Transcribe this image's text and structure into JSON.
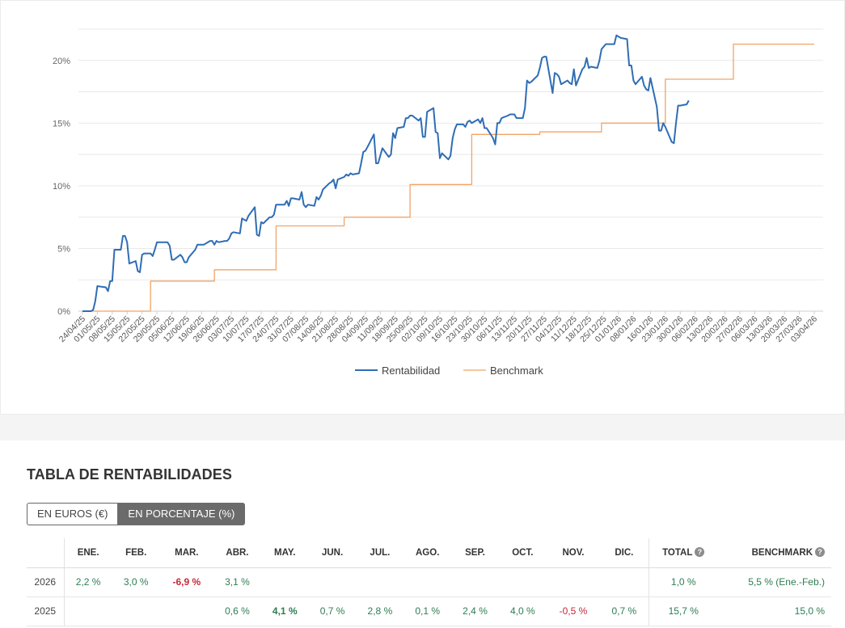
{
  "chart_data": {
    "type": "line",
    "y_ticks": [
      "0%",
      "5%",
      "10%",
      "15%",
      "20%"
    ],
    "ylim": [
      0,
      22.5
    ],
    "date_labels": [
      "24/04/25",
      "01/05/25",
      "08/05/25",
      "15/05/25",
      "22/05/25",
      "29/05/25",
      "05/06/25",
      "12/06/25",
      "19/06/25",
      "26/06/25",
      "03/07/25",
      "10/07/25",
      "17/07/25",
      "24/07/25",
      "31/07/25",
      "07/08/25",
      "14/08/25",
      "21/08/25",
      "28/08/25",
      "04/09/25",
      "11/09/25",
      "18/09/25",
      "25/09/25",
      "02/10/25",
      "09/10/25",
      "16/10/25",
      "23/10/25",
      "30/10/25",
      "06/11/25",
      "13/11/25",
      "20/11/25",
      "27/11/25",
      "04/12/25",
      "11/12/25",
      "18/12/25",
      "25/12/25",
      "01/01/26",
      "08/01/26",
      "16/01/26",
      "23/01/26",
      "30/01/26",
      "06/02/26",
      "13/02/26",
      "20/02/26",
      "27/02/26",
      "06/03/26",
      "13/03/26",
      "20/03/26",
      "27/03/26",
      "03/04/26"
    ],
    "legend_position": "bottom",
    "series": [
      {
        "name": "Rentabilidad",
        "color": "#2f6db5",
        "points": [
          [
            "24/04/25",
            0.0
          ],
          [
            "28/04/25",
            0.0
          ],
          [
            "29/04/25",
            0.1
          ],
          [
            "30/04/25",
            0.8
          ],
          [
            "01/05/25",
            2.0
          ],
          [
            "05/05/25",
            1.9
          ],
          [
            "06/05/25",
            1.6
          ],
          [
            "07/05/25",
            2.4
          ],
          [
            "08/05/25",
            2.4
          ],
          [
            "09/05/25",
            4.9
          ],
          [
            "12/05/25",
            4.9
          ],
          [
            "13/05/25",
            6.0
          ],
          [
            "14/05/25",
            6.0
          ],
          [
            "15/05/25",
            5.5
          ],
          [
            "16/05/25",
            3.8
          ],
          [
            "19/05/25",
            4.0
          ],
          [
            "20/05/25",
            3.2
          ],
          [
            "21/05/25",
            3.1
          ],
          [
            "22/05/25",
            4.5
          ],
          [
            "23/05/25",
            4.6
          ],
          [
            "26/05/25",
            4.6
          ],
          [
            "27/05/25",
            4.4
          ],
          [
            "28/05/25",
            4.9
          ],
          [
            "29/05/25",
            5.5
          ],
          [
            "02/06/25",
            5.5
          ],
          [
            "03/06/25",
            5.5
          ],
          [
            "04/06/25",
            5.2
          ],
          [
            "05/06/25",
            4.1
          ],
          [
            "06/06/25",
            4.1
          ],
          [
            "09/06/25",
            4.5
          ],
          [
            "10/06/25",
            4.3
          ],
          [
            "11/06/25",
            3.9
          ],
          [
            "12/06/25",
            3.9
          ],
          [
            "13/06/25",
            4.3
          ],
          [
            "16/06/25",
            4.9
          ],
          [
            "17/06/25",
            5.3
          ],
          [
            "18/06/25",
            5.3
          ],
          [
            "19/06/25",
            5.3
          ],
          [
            "20/06/25",
            5.3
          ],
          [
            "23/06/25",
            5.6
          ],
          [
            "24/06/25",
            5.6
          ],
          [
            "25/06/25",
            5.3
          ],
          [
            "26/06/25",
            5.6
          ],
          [
            "27/06/25",
            5.5
          ],
          [
            "30/06/25",
            5.6
          ],
          [
            "01/07/25",
            5.6
          ],
          [
            "02/07/25",
            5.8
          ],
          [
            "03/07/25",
            6.2
          ],
          [
            "04/07/25",
            6.3
          ],
          [
            "07/07/25",
            6.2
          ],
          [
            "08/07/25",
            7.4
          ],
          [
            "09/07/25",
            7.3
          ],
          [
            "10/07/25",
            7.2
          ],
          [
            "11/07/25",
            7.6
          ],
          [
            "14/07/25",
            8.3
          ],
          [
            "15/07/25",
            6.1
          ],
          [
            "16/07/25",
            6.0
          ],
          [
            "17/07/25",
            7.1
          ],
          [
            "18/07/25",
            7.0
          ],
          [
            "21/07/25",
            7.5
          ],
          [
            "22/07/25",
            7.5
          ],
          [
            "23/07/25",
            7.7
          ],
          [
            "24/07/25",
            8.5
          ],
          [
            "25/07/25",
            8.5
          ],
          [
            "28/07/25",
            8.5
          ],
          [
            "29/07/25",
            8.8
          ],
          [
            "30/07/25",
            8.4
          ],
          [
            "31/07/25",
            9.0
          ],
          [
            "01/08/25",
            9.0
          ],
          [
            "04/08/25",
            8.9
          ],
          [
            "05/08/25",
            9.5
          ],
          [
            "06/08/25",
            8.5
          ],
          [
            "07/08/25",
            8.3
          ],
          [
            "08/08/25",
            8.5
          ],
          [
            "11/08/25",
            8.4
          ],
          [
            "12/08/25",
            9.1
          ],
          [
            "13/08/25",
            8.9
          ],
          [
            "14/08/25",
            9.2
          ],
          [
            "15/08/25",
            9.7
          ],
          [
            "18/08/25",
            10.2
          ],
          [
            "19/08/25",
            10.3
          ],
          [
            "20/08/25",
            10.5
          ],
          [
            "21/08/25",
            9.8
          ],
          [
            "22/08/25",
            10.5
          ],
          [
            "25/08/25",
            10.7
          ],
          [
            "26/08/25",
            10.9
          ],
          [
            "27/08/25",
            10.8
          ],
          [
            "28/08/25",
            11.0
          ],
          [
            "29/08/25",
            10.9
          ],
          [
            "01/09/25",
            11.0
          ],
          [
            "02/09/25",
            11.8
          ],
          [
            "03/09/25",
            12.7
          ],
          [
            "04/09/25",
            12.8
          ],
          [
            "05/09/25",
            13.1
          ],
          [
            "08/09/25",
            14.1
          ],
          [
            "09/09/25",
            11.8
          ],
          [
            "10/09/25",
            11.8
          ],
          [
            "11/09/25",
            12.4
          ],
          [
            "12/09/25",
            13.0
          ],
          [
            "15/09/25",
            12.3
          ],
          [
            "16/09/25",
            12.5
          ],
          [
            "17/09/25",
            14.2
          ],
          [
            "18/09/25",
            13.8
          ],
          [
            "19/09/25",
            14.6
          ],
          [
            "22/09/25",
            14.7
          ],
          [
            "23/09/25",
            15.4
          ],
          [
            "24/09/25",
            15.4
          ],
          [
            "25/09/25",
            15.6
          ],
          [
            "26/09/25",
            15.6
          ],
          [
            "29/09/25",
            15.2
          ],
          [
            "30/09/25",
            15.4
          ],
          [
            "01/10/25",
            13.9
          ],
          [
            "02/10/25",
            13.9
          ],
          [
            "03/10/25",
            15.9
          ],
          [
            "06/10/25",
            16.2
          ],
          [
            "07/10/25",
            14.3
          ],
          [
            "08/10/25",
            14.2
          ],
          [
            "09/10/25",
            12.2
          ],
          [
            "10/10/25",
            12.6
          ],
          [
            "13/10/25",
            12.1
          ],
          [
            "14/10/25",
            12.4
          ],
          [
            "15/10/25",
            13.8
          ],
          [
            "16/10/25",
            14.5
          ],
          [
            "17/10/25",
            14.9
          ],
          [
            "20/10/25",
            14.9
          ],
          [
            "21/10/25",
            14.7
          ],
          [
            "22/10/25",
            15.1
          ],
          [
            "23/10/25",
            15.2
          ],
          [
            "24/10/25",
            15.0
          ],
          [
            "27/10/25",
            15.3
          ],
          [
            "28/10/25",
            15.0
          ],
          [
            "29/10/25",
            15.4
          ],
          [
            "30/10/25",
            14.6
          ],
          [
            "31/10/25",
            14.6
          ],
          [
            "03/11/25",
            13.8
          ],
          [
            "04/11/25",
            13.3
          ],
          [
            "05/11/25",
            15.0
          ],
          [
            "06/11/25",
            15.0
          ],
          [
            "07/11/25",
            15.4
          ],
          [
            "10/11/25",
            15.6
          ],
          [
            "11/11/25",
            15.7
          ],
          [
            "12/11/25",
            15.7
          ],
          [
            "13/11/25",
            15.7
          ],
          [
            "14/11/25",
            15.4
          ],
          [
            "17/11/25",
            15.4
          ],
          [
            "18/11/25",
            16.2
          ],
          [
            "19/11/25",
            18.4
          ],
          [
            "20/11/25",
            18.2
          ],
          [
            "21/11/25",
            18.3
          ],
          [
            "24/11/25",
            18.8
          ],
          [
            "25/11/25",
            19.4
          ],
          [
            "26/11/25",
            20.2
          ],
          [
            "27/11/25",
            20.3
          ],
          [
            "28/11/25",
            20.3
          ],
          [
            "01/12/25",
            17.4
          ],
          [
            "02/12/25",
            19.0
          ],
          [
            "03/12/25",
            18.9
          ],
          [
            "04/12/25",
            18.7
          ],
          [
            "05/12/25",
            18.1
          ],
          [
            "08/12/25",
            18.4
          ],
          [
            "09/12/25",
            18.2
          ],
          [
            "10/12/25",
            18.1
          ],
          [
            "11/12/25",
            19.3
          ],
          [
            "12/12/25",
            18.0
          ],
          [
            "15/12/25",
            19.3
          ],
          [
            "16/12/25",
            19.5
          ],
          [
            "17/12/25",
            20.2
          ],
          [
            "18/12/25",
            19.4
          ],
          [
            "19/12/25",
            19.5
          ],
          [
            "22/12/25",
            19.4
          ],
          [
            "23/12/25",
            20.0
          ],
          [
            "24/12/25",
            20.9
          ],
          [
            "26/12/25",
            21.3
          ],
          [
            "29/12/25",
            21.3
          ],
          [
            "30/12/25",
            21.3
          ],
          [
            "31/12/25",
            22.0
          ],
          [
            "02/01/26",
            21.8
          ],
          [
            "05/01/26",
            21.7
          ],
          [
            "06/01/26",
            19.6
          ],
          [
            "07/01/26",
            19.6
          ],
          [
            "08/01/26",
            18.4
          ],
          [
            "09/01/26",
            18.1
          ],
          [
            "12/01/26",
            18.7
          ],
          [
            "13/01/26",
            18.0
          ],
          [
            "14/01/26",
            17.7
          ],
          [
            "15/01/26",
            17.6
          ],
          [
            "16/01/26",
            18.6
          ],
          [
            "19/01/26",
            16.3
          ],
          [
            "20/01/26",
            14.4
          ],
          [
            "21/01/26",
            14.4
          ],
          [
            "22/01/26",
            15.0
          ],
          [
            "23/01/26",
            14.7
          ],
          [
            "26/01/26",
            13.5
          ],
          [
            "27/01/26",
            13.4
          ],
          [
            "28/01/26",
            15.0
          ],
          [
            "29/01/26",
            16.4
          ],
          [
            "30/01/26",
            16.4
          ],
          [
            "02/02/26",
            16.5
          ],
          [
            "03/02/26",
            16.8
          ]
        ]
      },
      {
        "name": "Benchmark",
        "color": "#f0a468",
        "points": [
          [
            "24/04/25",
            0.0
          ],
          [
            "26/05/25",
            0.0
          ],
          [
            "26/05/25",
            2.4
          ],
          [
            "25/06/25",
            2.4
          ],
          [
            "25/06/25",
            3.3
          ],
          [
            "24/07/25",
            3.3
          ],
          [
            "24/07/25",
            6.8
          ],
          [
            "25/08/25",
            6.8
          ],
          [
            "25/08/25",
            7.5
          ],
          [
            "25/09/25",
            7.5
          ],
          [
            "25/09/25",
            10.1
          ],
          [
            "24/10/25",
            10.1
          ],
          [
            "24/10/25",
            14.1
          ],
          [
            "25/11/25",
            14.1
          ],
          [
            "25/11/25",
            14.3
          ],
          [
            "24/12/25",
            14.3
          ],
          [
            "24/12/25",
            15.0
          ],
          [
            "23/01/26",
            15.0
          ],
          [
            "23/01/26",
            18.5
          ],
          [
            "24/02/26",
            18.5
          ],
          [
            "24/02/26",
            21.3
          ],
          [
            "03/04/26",
            21.3
          ]
        ]
      }
    ]
  },
  "table": {
    "title": "TABLA DE RENTABILIDADES",
    "toggle": {
      "euros": "EN EUROS (€)",
      "percent": "EN PORCENTAJE (%)"
    },
    "months": [
      "ENE.",
      "FEB.",
      "MAR.",
      "ABR.",
      "MAY.",
      "JUN.",
      "JUL.",
      "AGO.",
      "SEP.",
      "OCT.",
      "NOV.",
      "DIC."
    ],
    "total_label": "TOTAL",
    "benchmark_label": "BENCHMARK",
    "help_glyph": "?",
    "rows": [
      {
        "year": "2026",
        "values": [
          "2,2 %",
          "3,0 %",
          "-6,9 %",
          "3,1 %",
          "",
          "",
          "",
          "",
          "",
          "",
          "",
          ""
        ],
        "total": "1,0 %",
        "benchmark": "5,5 %",
        "benchmark_note": "(Ene.-Feb.)"
      },
      {
        "year": "2025",
        "values": [
          "",
          "",
          "",
          "0,6 %",
          "4,1 %",
          "0,7 %",
          "2,8 %",
          "0,1 %",
          "2,4 %",
          "4,0 %",
          "-0,5 %",
          "0,7 %"
        ],
        "total": "15,7 %",
        "benchmark": "15,0 %",
        "benchmark_note": ""
      }
    ],
    "colors": {
      "positive": "#2e7d52",
      "negative": "#c62839"
    }
  }
}
